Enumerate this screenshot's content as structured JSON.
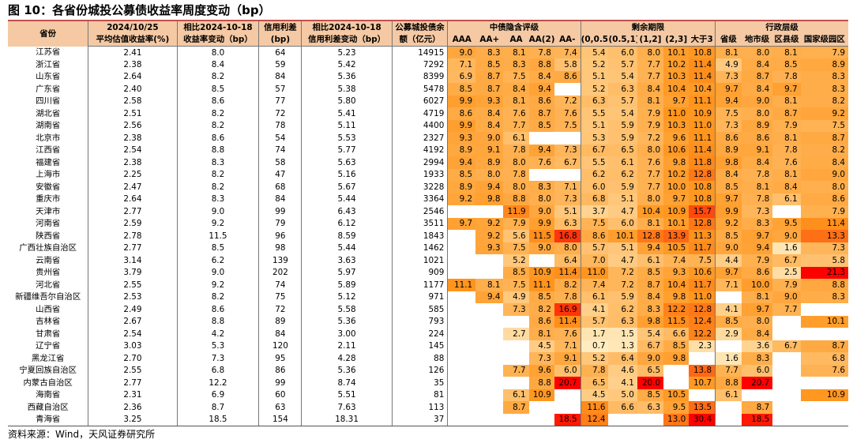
{
  "title": "图 10：各省份城投公募债收益率周度变动（bp）",
  "source": "资料来源：Wind，天风证券研究所",
  "colors": {
    "header_bg": "#f4c9a4",
    "rule": "#c0504d",
    "heat_low": "#fff2cc",
    "heat_high": "#ff0000"
  },
  "headers": {
    "province": "省份",
    "left": [
      {
        "top": "2024/10/25",
        "bottom": "平均估值收益率(%)"
      },
      {
        "top": "相比2024-10-18",
        "bottom": "收益率变动（bp）"
      },
      {
        "top": "信用利差",
        "bottom": "(bp)"
      },
      {
        "top": "相比2024-10-18",
        "bottom": "信用利差变动（bp）"
      },
      {
        "top": "公募城投债余",
        "bottom": "额（亿元）"
      }
    ],
    "groups": [
      {
        "label": "中债隐含评级",
        "cols": [
          "AAA",
          "AA+",
          "AA",
          "AA(2)",
          "AA-"
        ]
      },
      {
        "label": "剩余期限",
        "cols": [
          "(0,0.5]",
          "(0.5,1]",
          "(1,2]",
          "(2,3]",
          "大于3"
        ]
      },
      {
        "label": "行政层级",
        "cols": [
          "省级",
          "地市级",
          "区县级",
          "国家级园区"
        ]
      }
    ]
  },
  "rows": [
    {
      "province": "江苏省",
      "base": [
        "2.41",
        "8.0",
        "64",
        "5.23",
        "14915"
      ],
      "cells": [
        "9.0",
        "8.3",
        "8.1",
        "7.8",
        "7.4",
        "5.4",
        "6.0",
        "8.0",
        "10.1",
        "10.8",
        "8.1",
        "8.0",
        "8.1",
        "7.9"
      ]
    },
    {
      "province": "浙江省",
      "base": [
        "2.38",
        "8.4",
        "59",
        "5.42",
        "7292"
      ],
      "cells": [
        "7.1",
        "8.5",
        "8.3",
        "8.8",
        "5.8",
        "5.2",
        "5.7",
        "7.7",
        "10.2",
        "11.4",
        "4.9",
        "8.4",
        "8.5",
        "8.9"
      ]
    },
    {
      "province": "山东省",
      "base": [
        "2.64",
        "8.2",
        "84",
        "5.36",
        "8399"
      ],
      "cells": [
        "6.9",
        "8.7",
        "7.5",
        "8.4",
        "8.6",
        "5.1",
        "5.4",
        "7.7",
        "10.3",
        "11.4",
        "7.3",
        "8.7",
        "7.8",
        "8.3"
      ]
    },
    {
      "province": "广东省",
      "base": [
        "2.40",
        "8.5",
        "57",
        "5.38",
        "5478"
      ],
      "cells": [
        "8.5",
        "8.7",
        "8.4",
        "9.4",
        "",
        "5.2",
        "6.3",
        "8.4",
        "10.4",
        "10.4",
        "9.7",
        "8.4",
        "9.7",
        "8.3"
      ]
    },
    {
      "province": "四川省",
      "base": [
        "2.58",
        "8.6",
        "77",
        "5.80",
        "6027"
      ],
      "cells": [
        "9.9",
        "9.3",
        "8.1",
        "8.6",
        "7.2",
        "6.3",
        "5.7",
        "8.1",
        "9.7",
        "11.1",
        "9.4",
        "9.0",
        "8.1",
        "8.2"
      ]
    },
    {
      "province": "湖北省",
      "base": [
        "2.51",
        "8.2",
        "72",
        "5.41",
        "4719"
      ],
      "cells": [
        "8.6",
        "8.4",
        "7.6",
        "8.7",
        "7.6",
        "5.5",
        "5.4",
        "7.9",
        "11.0",
        "10.9",
        "7.5",
        "8.0",
        "8.7",
        "9.2"
      ]
    },
    {
      "province": "湖南省",
      "base": [
        "2.56",
        "8.2",
        "78",
        "5.11",
        "4400"
      ],
      "cells": [
        "9.9",
        "8.4",
        "7.7",
        "8.5",
        "7.5",
        "5.1",
        "5.9",
        "7.9",
        "10.3",
        "11.0",
        "7.3",
        "8.9",
        "7.9",
        "7.5"
      ]
    },
    {
      "province": "北京市",
      "base": [
        "2.38",
        "8.6",
        "54",
        "5.53",
        "2327"
      ],
      "cells": [
        "9.3",
        "9.0",
        "6.1",
        "",
        "",
        "5.3",
        "5.9",
        "7.2",
        "9.6",
        "11.1",
        "8.6",
        "8.6",
        "8.1",
        "8.7"
      ]
    },
    {
      "province": "江西省",
      "base": [
        "2.54",
        "8.8",
        "74",
        "5.77",
        "4192"
      ],
      "cells": [
        "8.9",
        "9.1",
        "7.8",
        "9.4",
        "7.3",
        "6.7",
        "6.5",
        "8.0",
        "10.6",
        "11.4",
        "8.9",
        "9.1",
        "7.8",
        "8.2"
      ]
    },
    {
      "province": "福建省",
      "base": [
        "2.38",
        "8.3",
        "58",
        "5.63",
        "2994"
      ],
      "cells": [
        "9.4",
        "8.9",
        "8.0",
        "7.6",
        "6.7",
        "5.5",
        "6.1",
        "7.6",
        "9.8",
        "11.8",
        "9.8",
        "8.4",
        "7.6",
        "8.4"
      ]
    },
    {
      "province": "上海市",
      "base": [
        "2.25",
        "8.2",
        "47",
        "5.16",
        "1933"
      ],
      "cells": [
        "8.5",
        "8.0",
        "7.8",
        "",
        "",
        "6.2",
        "6.2",
        "7.7",
        "10.2",
        "12.8",
        "8.4",
        "7.8",
        "8.1",
        "9.0"
      ]
    },
    {
      "province": "安徽省",
      "base": [
        "2.47",
        "8.2",
        "68",
        "5.67",
        "3228"
      ],
      "cells": [
        "8.9",
        "9.4",
        "8.0",
        "8.3",
        "7.1",
        "6.0",
        "5.9",
        "7.7",
        "10.0",
        "10.8",
        "8.5",
        "8.1",
        "8.4",
        "8.0"
      ]
    },
    {
      "province": "重庆市",
      "base": [
        "2.64",
        "8.3",
        "84",
        "5.44",
        "3364"
      ],
      "cells": [
        "9.2",
        "9.8",
        "8.8",
        "8.0",
        "7.3",
        "6.8",
        "5.1",
        "8.0",
        "9.7",
        "10.8",
        "9.7",
        "7.8",
        "6.1",
        "8.6"
      ]
    },
    {
      "province": "天津市",
      "base": [
        "2.77",
        "9.0",
        "99",
        "6.43",
        "2546"
      ],
      "cells": [
        "",
        "",
        "11.9",
        "9.0",
        "5.1",
        "3.7",
        "4.7",
        "10.4",
        "10.9",
        "15.7",
        "9.9",
        "7.3",
        "",
        "7.9"
      ]
    },
    {
      "province": "河南省",
      "base": [
        "2.59",
        "9.2",
        "79",
        "6.12",
        "3511"
      ],
      "cells": [
        "9.7",
        "9.2",
        "7.9",
        "9.9",
        "6.3",
        "7.5",
        "6.0",
        "8.1",
        "10.1",
        "12.8",
        "9.2",
        "8.3",
        "9.5",
        "11.4"
      ]
    },
    {
      "province": "陕西省",
      "base": [
        "2.78",
        "11.5",
        "96",
        "8.59",
        "1843"
      ],
      "cells": [
        "",
        "9.2",
        "5.6",
        "11.5",
        "16.8",
        "8.6",
        "10.1",
        "12.8",
        "13.9",
        "11.3",
        "8.5",
        "9.7",
        "9.0",
        "13.3"
      ]
    },
    {
      "province": "广西壮族自治区",
      "base": [
        "2.77",
        "8.5",
        "98",
        "5.44",
        "1462"
      ],
      "cells": [
        "",
        "9.3",
        "7.5",
        "9.0",
        "8.0",
        "5.7",
        "5.1",
        "9.4",
        "10.5",
        "11.7",
        "9.0",
        "9.4",
        "1.6",
        "7.3"
      ]
    },
    {
      "province": "云南省",
      "base": [
        "3.14",
        "6.2",
        "139",
        "3.63",
        "1021"
      ],
      "cells": [
        "",
        "",
        "5.2",
        "",
        "6.4",
        "7.0",
        "4.7",
        "6.1",
        "7.4",
        "7.5",
        "4.4",
        "7.9",
        "6.7",
        "5.8"
      ]
    },
    {
      "province": "贵州省",
      "base": [
        "3.79",
        "9.0",
        "202",
        "5.97",
        "909"
      ],
      "cells": [
        "",
        "",
        "8.5",
        "10.9",
        "11.4",
        "11.0",
        "7.2",
        "8.5",
        "9.3",
        "10.6",
        "9.7",
        "8.6",
        "2.5",
        "21.3"
      ]
    },
    {
      "province": "河北省",
      "base": [
        "2.55",
        "9.2",
        "74",
        "5.89",
        "1177"
      ],
      "cells": [
        "11.1",
        "8.1",
        "7.5",
        "11.1",
        "8.2",
        "7.4",
        "7.2",
        "8.7",
        "10.4",
        "11.7",
        "7.1",
        "10.0",
        "7.9",
        "8.8"
      ]
    },
    {
      "province": "新疆维吾尔自治区",
      "base": [
        "2.53",
        "8.2",
        "75",
        "5.12",
        "971"
      ],
      "cells": [
        "",
        "9.4",
        "4.9",
        "8.5",
        "7.8",
        "6.1",
        "5.9",
        "8.4",
        "9.8",
        "11.0",
        "",
        "8.1",
        "9.0",
        "8.3"
      ]
    },
    {
      "province": "山西省",
      "base": [
        "2.49",
        "8.6",
        "72",
        "5.58",
        "585"
      ],
      "cells": [
        "",
        "",
        "7.3",
        "8.2",
        "16.9",
        "4.1",
        "6.2",
        "8.3",
        "12.2",
        "12.8",
        "4.1",
        "9.7",
        "7.7",
        ""
      ]
    },
    {
      "province": "吉林省",
      "base": [
        "2.67",
        "8.8",
        "89",
        "5.36",
        "793"
      ],
      "cells": [
        "",
        "",
        "",
        "8.6",
        "11.4",
        "5.7",
        "6.3",
        "9.8",
        "11.5",
        "12.4",
        "8.5",
        "8.0",
        "",
        "10.1"
      ]
    },
    {
      "province": "甘肃省",
      "base": [
        "2.54",
        "4.2",
        "84",
        "3.00",
        "224"
      ],
      "cells": [
        "",
        "",
        "2.7",
        "8.1",
        "7.6",
        "1.7",
        "1.5",
        "5.4",
        "6.6",
        "12.2",
        "2.9",
        "8.4",
        "",
        ""
      ]
    },
    {
      "province": "辽宁省",
      "base": [
        "3.03",
        "5.3",
        "120",
        "2.11",
        "145"
      ],
      "cells": [
        "",
        "",
        "",
        "4.5",
        "7.1",
        "0.7",
        "1.3",
        "6.7",
        "8.5",
        "2.3",
        "",
        "3.6",
        "6.7",
        "8.7"
      ]
    },
    {
      "province": "黑龙江省",
      "base": [
        "2.70",
        "7.3",
        "95",
        "4.28",
        "88"
      ],
      "cells": [
        "",
        "",
        "",
        "7.3",
        "9.1",
        "5.2",
        "6.4",
        "9.0",
        "9.8",
        "",
        "1.6",
        "8.3",
        "",
        "6.8"
      ]
    },
    {
      "province": "宁夏回族自治区",
      "base": [
        "2.55",
        "6.8",
        "86",
        "5.36",
        "126"
      ],
      "cells": [
        "",
        "",
        "7.7",
        "9.6",
        "6.0",
        "7.8",
        "4.6",
        "6.5",
        "",
        "13.8",
        "7.7",
        "6.0",
        "",
        "7.6"
      ]
    },
    {
      "province": "内蒙古自治区",
      "base": [
        "2.77",
        "12.2",
        "99",
        "8.74",
        "35"
      ],
      "cells": [
        "",
        "",
        "",
        "8.8",
        "20.7",
        "6.5",
        "4.1",
        "20.0",
        "",
        "10.7",
        "8.8",
        "20.7",
        "",
        ""
      ]
    },
    {
      "province": "海南省",
      "base": [
        "2.31",
        "6.9",
        "60",
        "5.51",
        "81"
      ],
      "cells": [
        "",
        "",
        "6.1",
        "10.9",
        "",
        "4.5",
        "5.0",
        "8.5",
        "10.5",
        "",
        "6.1",
        "",
        "",
        "10.9"
      ]
    },
    {
      "province": "西藏自治区",
      "base": [
        "2.36",
        "8.7",
        "63",
        "7.63",
        "113"
      ],
      "cells": [
        "",
        "",
        "8.7",
        "",
        "",
        "11.6",
        "6.6",
        "6.3",
        "9.5",
        "13.5",
        "",
        "8.7",
        "",
        ""
      ]
    },
    {
      "province": "青海省",
      "base": [
        "3.25",
        "18.5",
        "154",
        "18.31",
        "37"
      ],
      "cells": [
        "",
        "",
        "",
        "",
        "18.5",
        "12.4",
        "",
        "",
        "13.0",
        "30.4",
        "",
        "18.5",
        "",
        ""
      ]
    }
  ]
}
